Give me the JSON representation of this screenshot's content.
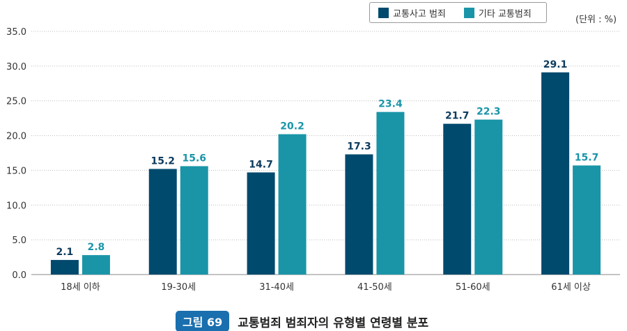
{
  "chart_data": {
    "type": "bar",
    "categories": [
      "18세 이하",
      "19-30세",
      "31-40세",
      "41-50세",
      "51-60세",
      "61세 이상"
    ],
    "series": [
      {
        "name": "교통사고 범죄",
        "color": "#004a6e",
        "label_color": "#0d3b5e",
        "values": [
          2.1,
          15.2,
          14.7,
          17.3,
          21.7,
          29.1
        ]
      },
      {
        "name": "기타 교통범죄",
        "color": "#1a95a8",
        "label_color": "#1a95a8",
        "values": [
          2.8,
          15.6,
          20.2,
          23.4,
          22.3,
          15.7
        ]
      }
    ],
    "ylim": [
      0,
      35
    ],
    "yticks": [
      "0.0",
      "5.0",
      "10.0",
      "15.0",
      "20.0",
      "25.0",
      "30.0",
      "35.0"
    ],
    "grid": true,
    "legend": "top-right",
    "unit": "(단위 : %)"
  },
  "caption": {
    "badge": "그림 69",
    "title": "교통범죄 범죄자의 유형별 연령별 분포"
  }
}
